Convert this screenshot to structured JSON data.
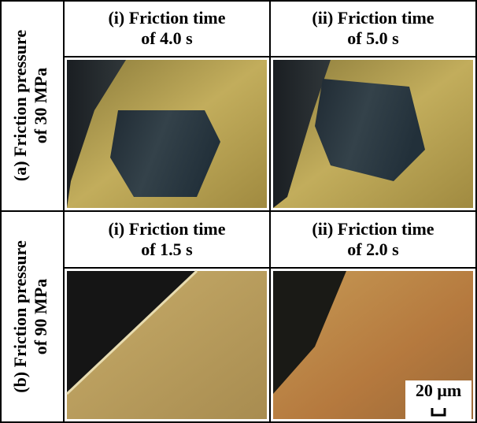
{
  "panels": [
    {
      "label_lines": [
        "(a) Friction pressure",
        "of 30 MPa"
      ],
      "images": [
        {
          "caption_lines": [
            "(i) Friction time",
            "of 4.0 s"
          ]
        },
        {
          "caption_lines": [
            "(ii) Friction time",
            "of 5.0 s"
          ]
        }
      ]
    },
    {
      "label_lines": [
        "(b) Friction pressure",
        "of 90 MPa"
      ],
      "images": [
        {
          "caption_lines": [
            "(i) Friction time",
            "of 1.5 s"
          ]
        },
        {
          "caption_lines": [
            "(ii) Friction time",
            "of 2.0 s"
          ]
        }
      ]
    }
  ],
  "scale_bar": "20 μm"
}
